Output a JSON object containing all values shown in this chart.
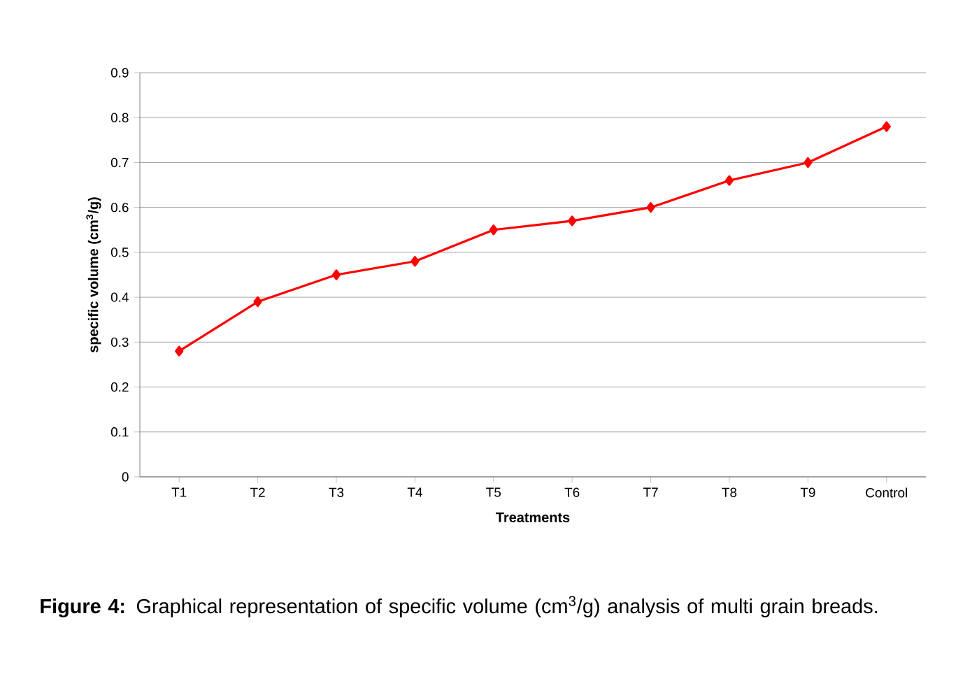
{
  "chart_data": {
    "type": "line",
    "xlabel": "Treatments",
    "ylabel": "specific volume (cm$^{3}$/g)",
    "categories": [
      "T1",
      "T2",
      "T3",
      "T4",
      "T5",
      "T6",
      "T7",
      "T8",
      "T9",
      "Control"
    ],
    "values": [
      0.28,
      0.39,
      0.45,
      0.48,
      0.55,
      0.57,
      0.6,
      0.66,
      0.7,
      0.78
    ],
    "color": "#ff0000",
    "marker": "diamond",
    "line_style": "solid",
    "grid": "y",
    "ylim": [
      0,
      0.9
    ],
    "yticks": [
      0,
      0.1,
      0.2,
      0.3,
      0.4,
      0.5,
      0.6,
      0.7,
      0.8,
      0.9
    ],
    "annotations": [
      "**Figure 4:** Graphical representation of specific volume (cm$^{3}$/g) analysis of multi grain breads."
    ]
  }
}
